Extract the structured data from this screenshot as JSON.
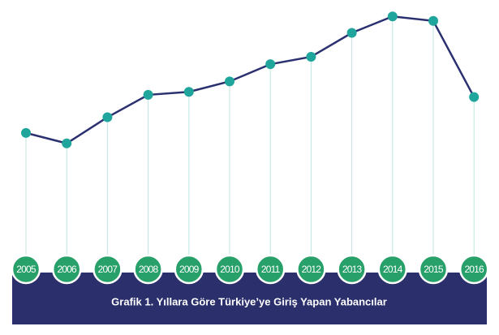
{
  "chart_data": {
    "type": "line",
    "title": "Grafik 1. Yıllara Göre Türkiye’ye Giriş Yapan Yabancılar",
    "categories": [
      "2005",
      "2006",
      "2007",
      "2008",
      "2009",
      "2010",
      "2011",
      "2012",
      "2013",
      "2014",
      "2015",
      "2016"
    ],
    "values": [
      21.2,
      19.8,
      23.3,
      26.3,
      26.7,
      28.1,
      30.4,
      31.4,
      34.6,
      36.8,
      36.2,
      26.0
    ],
    "color": "#2b3170",
    "marker_color": "#1fa59b",
    "ylim": [
      5,
      39
    ]
  }
}
